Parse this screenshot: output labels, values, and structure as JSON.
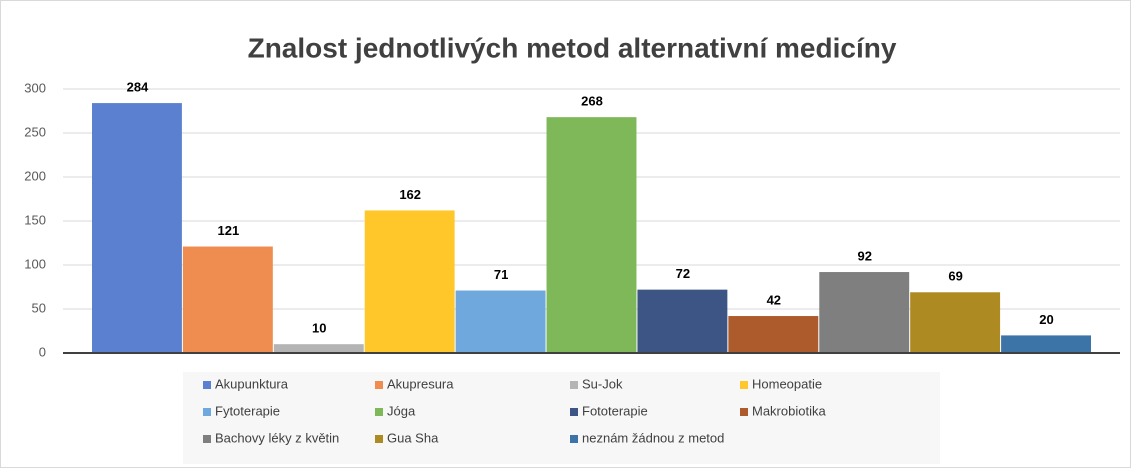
{
  "chart_data": {
    "type": "bar",
    "title": "Znalost jednotlivých metod alternativní medicíny",
    "categories": [
      "Akupunktura",
      "Akupresura",
      "Su-Jok",
      "Homeopatie",
      "Fytoterapie",
      "Jóga",
      "Fototerapie",
      "Makrobiotika",
      "Bachovy léky z květin",
      "Gua Sha",
      "neznám žádnou z metod"
    ],
    "values": [
      284,
      121,
      10,
      162,
      71,
      268,
      72,
      42,
      92,
      69,
      20
    ],
    "colors": [
      "#5b80d0",
      "#ef8c4f",
      "#b4b4b4",
      "#ffc72a",
      "#6fa8dc",
      "#7fb858",
      "#3c5585",
      "#ad5a2c",
      "#7f7f7f",
      "#ad8a22",
      "#3c74a8"
    ],
    "ylim": [
      0,
      300
    ],
    "yticks": [
      0,
      50,
      100,
      150,
      200,
      250,
      300
    ],
    "grid": true
  }
}
